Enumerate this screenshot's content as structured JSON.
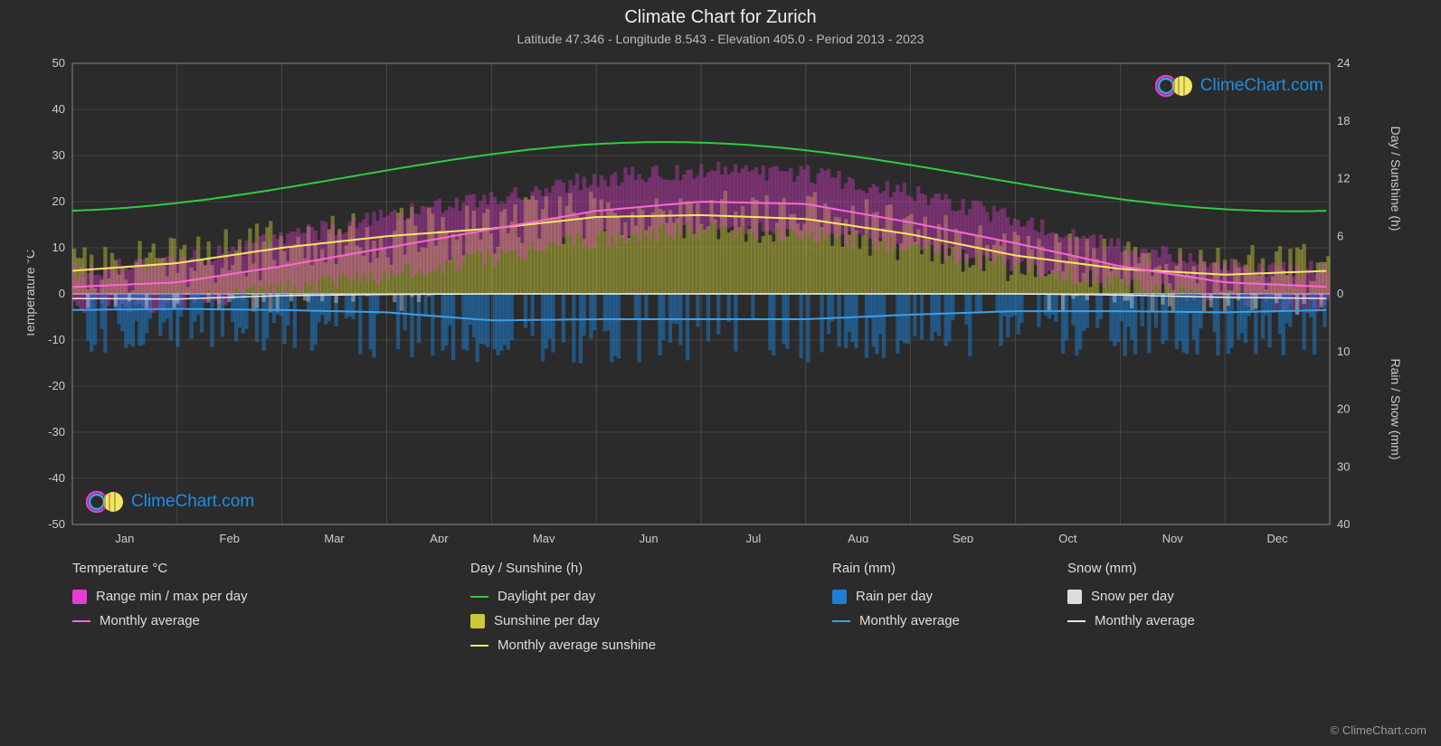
{
  "title": "Climate Chart for Zurich",
  "subtitle": "Latitude 47.346 - Longitude 8.543 - Elevation 405.0 - Period 2013 - 2023",
  "brand": "ClimeChart.com",
  "credit": "© ClimeChart.com",
  "chart": {
    "type": "climate-composite",
    "background": "#2b2b2b",
    "plot_background": "#2b2b2b",
    "grid_color": "#888888",
    "grid_opacity": 0.5,
    "text_color": "#cccccc",
    "months": [
      "Jan",
      "Feb",
      "Mar",
      "Apr",
      "May",
      "Jun",
      "Jul",
      "Aug",
      "Sep",
      "Oct",
      "Nov",
      "Dec"
    ],
    "y_left": {
      "label": "Temperature °C",
      "min": -50,
      "max": 50,
      "step": 10
    },
    "y_right_top": {
      "label": "Day / Sunshine (h)",
      "min": 0,
      "max": 24,
      "step": 6,
      "maps_to_temp": [
        0,
        50
      ]
    },
    "y_right_bottom": {
      "label": "Rain / Snow (mm)",
      "min": 0,
      "max": 40,
      "step": 10,
      "maps_to_temp": [
        0,
        -50
      ]
    },
    "series": {
      "daylight": {
        "label": "Daylight per day",
        "color": "#2ecc40",
        "width": 2,
        "values_h_365": {
          "amplitude": 3.6,
          "mean": 12.2,
          "phase_peak_day": 172
        }
      },
      "sunshine_avg": {
        "label": "Monthly average sunshine",
        "color": "#f5e663",
        "width": 2,
        "values_h_monthly": [
          2.4,
          3.2,
          4.8,
          6.0,
          6.8,
          8.0,
          8.2,
          7.8,
          6.2,
          4.0,
          2.6,
          2.0
        ]
      },
      "temp_avg": {
        "label": "Monthly average",
        "color": "#ff66d6",
        "width": 2,
        "values_c_monthly": [
          1.5,
          2.5,
          6.0,
          10.0,
          14.0,
          18.0,
          20.0,
          19.5,
          15.5,
          11.0,
          6.0,
          2.5
        ]
      },
      "rain_avg": {
        "label": "Monthly average",
        "color": "#3da0e6",
        "width": 2,
        "values_mm_monthly": [
          2.8,
          2.6,
          2.8,
          3.2,
          4.6,
          4.4,
          4.4,
          4.4,
          3.6,
          3.0,
          3.0,
          3.2
        ]
      },
      "snow_avg": {
        "label": "Monthly average",
        "color": "#e8e8e8",
        "width": 1.5,
        "values_mm_monthly": [
          0.8,
          0.9,
          0.3,
          0.1,
          0,
          0,
          0,
          0,
          0,
          0,
          0.2,
          0.6
        ]
      }
    },
    "bars": {
      "temp_range": {
        "label": "Range min / max per day",
        "color": "#e83bd4",
        "opacity": 0.35,
        "monthly_min_c": [
          -3,
          -2,
          1,
          4,
          8,
          12,
          14,
          13,
          10,
          6,
          2,
          -1
        ],
        "monthly_max_c": [
          5,
          7,
          12,
          17,
          21,
          25,
          27,
          26,
          22,
          16,
          10,
          6
        ],
        "noise_c": 4
      },
      "sunshine_daily": {
        "label": "Sunshine per day",
        "color": "#c9c93a",
        "opacity": 0.45,
        "source": "sunshine_avg",
        "noise_h": 3
      },
      "rain_daily": {
        "label": "Rain per day",
        "color": "#1b7fd4",
        "opacity": 0.5,
        "source": "rain_avg",
        "noise_mm": 8,
        "sparsity": 0.6
      },
      "snow_daily": {
        "label": "Snow per day",
        "color": "#dddddd",
        "opacity": 0.4,
        "source": "snow_avg",
        "noise_mm": 3,
        "sparsity": 0.25
      }
    }
  },
  "legend": {
    "col1": {
      "header": "Temperature °C",
      "items": [
        {
          "kind": "swatch",
          "color": "#e83bd4",
          "label": "Range min / max per day"
        },
        {
          "kind": "line",
          "color": "#ff66d6",
          "label": "Monthly average"
        }
      ]
    },
    "col2": {
      "header": "Day / Sunshine (h)",
      "items": [
        {
          "kind": "line",
          "color": "#2ecc40",
          "label": "Daylight per day"
        },
        {
          "kind": "swatch",
          "color": "#c9c93a",
          "label": "Sunshine per day"
        },
        {
          "kind": "line",
          "color": "#f5e663",
          "label": "Monthly average sunshine"
        }
      ]
    },
    "col3": {
      "header": "Rain (mm)",
      "items": [
        {
          "kind": "swatch",
          "color": "#1b7fd4",
          "label": "Rain per day"
        },
        {
          "kind": "line",
          "color": "#3da0e6",
          "label": "Monthly average"
        }
      ]
    },
    "col4": {
      "header": "Snow (mm)",
      "items": [
        {
          "kind": "swatch",
          "color": "#dddddd",
          "label": "Snow per day"
        },
        {
          "kind": "line",
          "color": "#e8e8e8",
          "label": "Monthly average"
        }
      ]
    }
  },
  "logo_colors": {
    "ring1": "#e83bd4",
    "ring2": "#3da0e6",
    "sphere": "#f5e663",
    "text": "#1b8fe6"
  }
}
